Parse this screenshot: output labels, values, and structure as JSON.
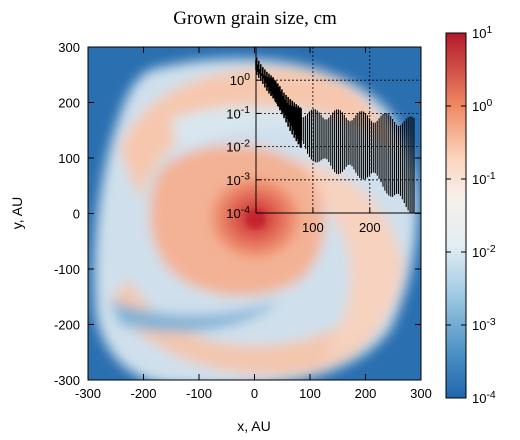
{
  "chart_data": {
    "type": "heatmap",
    "title": "Grown grain size, cm",
    "xlabel": "x, AU",
    "ylabel": "y, AU",
    "xlim": [
      -300,
      300
    ],
    "ylim": [
      -300,
      300
    ],
    "x_ticks": [
      "-300",
      "-200",
      "-100",
      "0",
      "100",
      "200",
      "300"
    ],
    "y_ticks": [
      "-300",
      "-200",
      "-100",
      "0",
      "100",
      "200",
      "300"
    ],
    "colorbar": {
      "scale": "log",
      "range": [
        0.0001,
        10
      ],
      "ticks": [
        {
          "base": "10",
          "exp": "1"
        },
        {
          "base": "10",
          "exp": "0"
        },
        {
          "base": "10",
          "exp": "-1"
        },
        {
          "base": "10",
          "exp": "-2"
        },
        {
          "base": "10",
          "exp": "-3"
        },
        {
          "base": "10",
          "exp": "-4"
        }
      ],
      "colormap": [
        "#2166ac",
        "#67a9cf",
        "#d1e5f0",
        "#f7f7f7",
        "#fddbc7",
        "#ef8a62",
        "#b2182b"
      ]
    },
    "field": {
      "description_free_values_in_cm": true,
      "center_value": 3.0,
      "background_value": 0.0005
    },
    "inset": {
      "type": "scatter-profile",
      "xlim": [
        0,
        290
      ],
      "ylim_log": [
        0.0001,
        10
      ],
      "x_ticks": [
        "100",
        "200"
      ],
      "y_ticks": [
        {
          "base": "10",
          "exp": "0"
        },
        {
          "base": "10",
          "exp": "-1"
        },
        {
          "base": "10",
          "exp": "-2"
        },
        {
          "base": "10",
          "exp": "-3"
        },
        {
          "base": "10",
          "exp": "-4"
        }
      ],
      "grid": true,
      "profile": [
        {
          "r": 0,
          "top": 4,
          "bottom": 2
        },
        {
          "r": 10,
          "top": 2,
          "bottom": 1.2
        },
        {
          "r": 20,
          "top": 1.3,
          "bottom": 0.6
        },
        {
          "r": 30,
          "top": 1.0,
          "bottom": 0.35
        },
        {
          "r": 40,
          "top": 0.6,
          "bottom": 0.18
        },
        {
          "r": 50,
          "top": 0.3,
          "bottom": 0.09
        },
        {
          "r": 60,
          "top": 0.2,
          "bottom": 0.04
        },
        {
          "r": 70,
          "top": 0.15,
          "bottom": 0.02
        },
        {
          "r": 80,
          "top": 0.12,
          "bottom": 0.01
        },
        {
          "r": 90,
          "top": 0.1,
          "bottom": 0.006
        },
        {
          "r": 100,
          "top": 0.1,
          "bottom": 0.005
        },
        {
          "r": 120,
          "top": 0.1,
          "bottom": 0.003
        },
        {
          "r": 140,
          "top": 0.1,
          "bottom": 0.002
        },
        {
          "r": 160,
          "top": 0.09,
          "bottom": 0.002
        },
        {
          "r": 180,
          "top": 0.09,
          "bottom": 0.0015
        },
        {
          "r": 200,
          "top": 0.08,
          "bottom": 0.0012
        },
        {
          "r": 220,
          "top": 0.08,
          "bottom": 0.0009
        },
        {
          "r": 240,
          "top": 0.07,
          "bottom": 0.0003
        },
        {
          "r": 260,
          "top": 0.06,
          "bottom": 0.0002
        },
        {
          "r": 280,
          "top": 0.06,
          "bottom": 0.0001
        }
      ]
    }
  }
}
